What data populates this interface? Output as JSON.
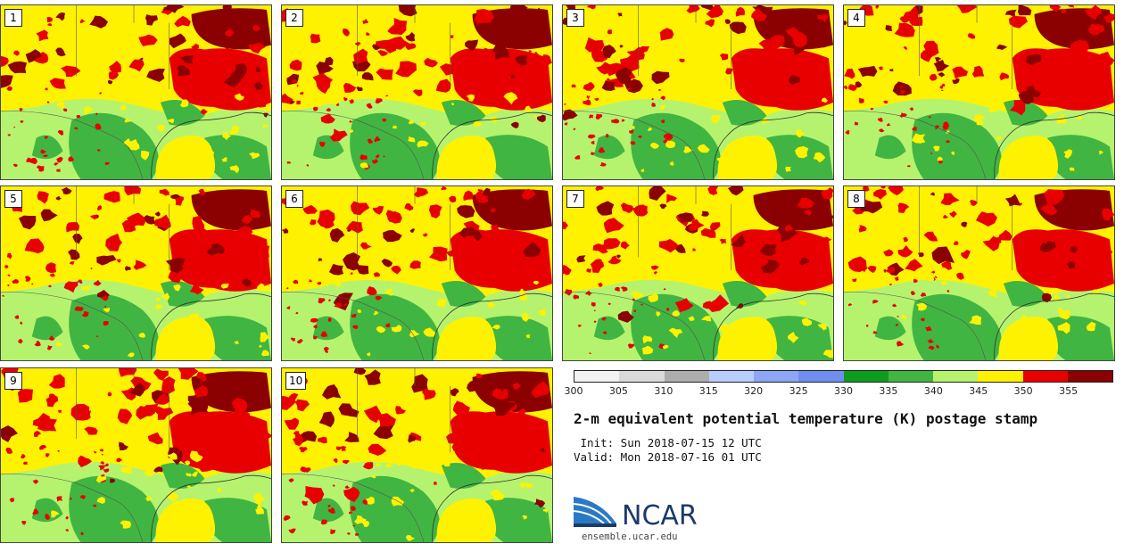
{
  "members": [
    "1",
    "2",
    "3",
    "4",
    "5",
    "6",
    "7",
    "8",
    "9",
    "10"
  ],
  "colorbar": {
    "colors": [
      "#f2f2f2",
      "#d9d9d9",
      "#adadad",
      "#b9cdfa",
      "#8da6f7",
      "#6f8ef0",
      "#0e9c1e",
      "#41b541",
      "#b5f36e",
      "#fff200",
      "#e80000",
      "#8b0000"
    ],
    "ticks": [
      "300",
      "305",
      "310",
      "315",
      "320",
      "325",
      "330",
      "335",
      "340",
      "345",
      "350",
      "355"
    ]
  },
  "title": "2-m equivalent potential temperature (K) postage stamp",
  "init": " Init: Sun 2018-07-15 12 UTC",
  "valid": "Valid: Mon 2018-07-16 01 UTC",
  "logo": {
    "text": "NCAR",
    "site": "ensemble.ucar.edu"
  },
  "palette": {
    "darkred": "#8b0000",
    "red": "#e80000",
    "yellow": "#fff200",
    "lightgreen": "#b5f36e",
    "green": "#41b541",
    "darkgreen": "#0e9c1e"
  }
}
